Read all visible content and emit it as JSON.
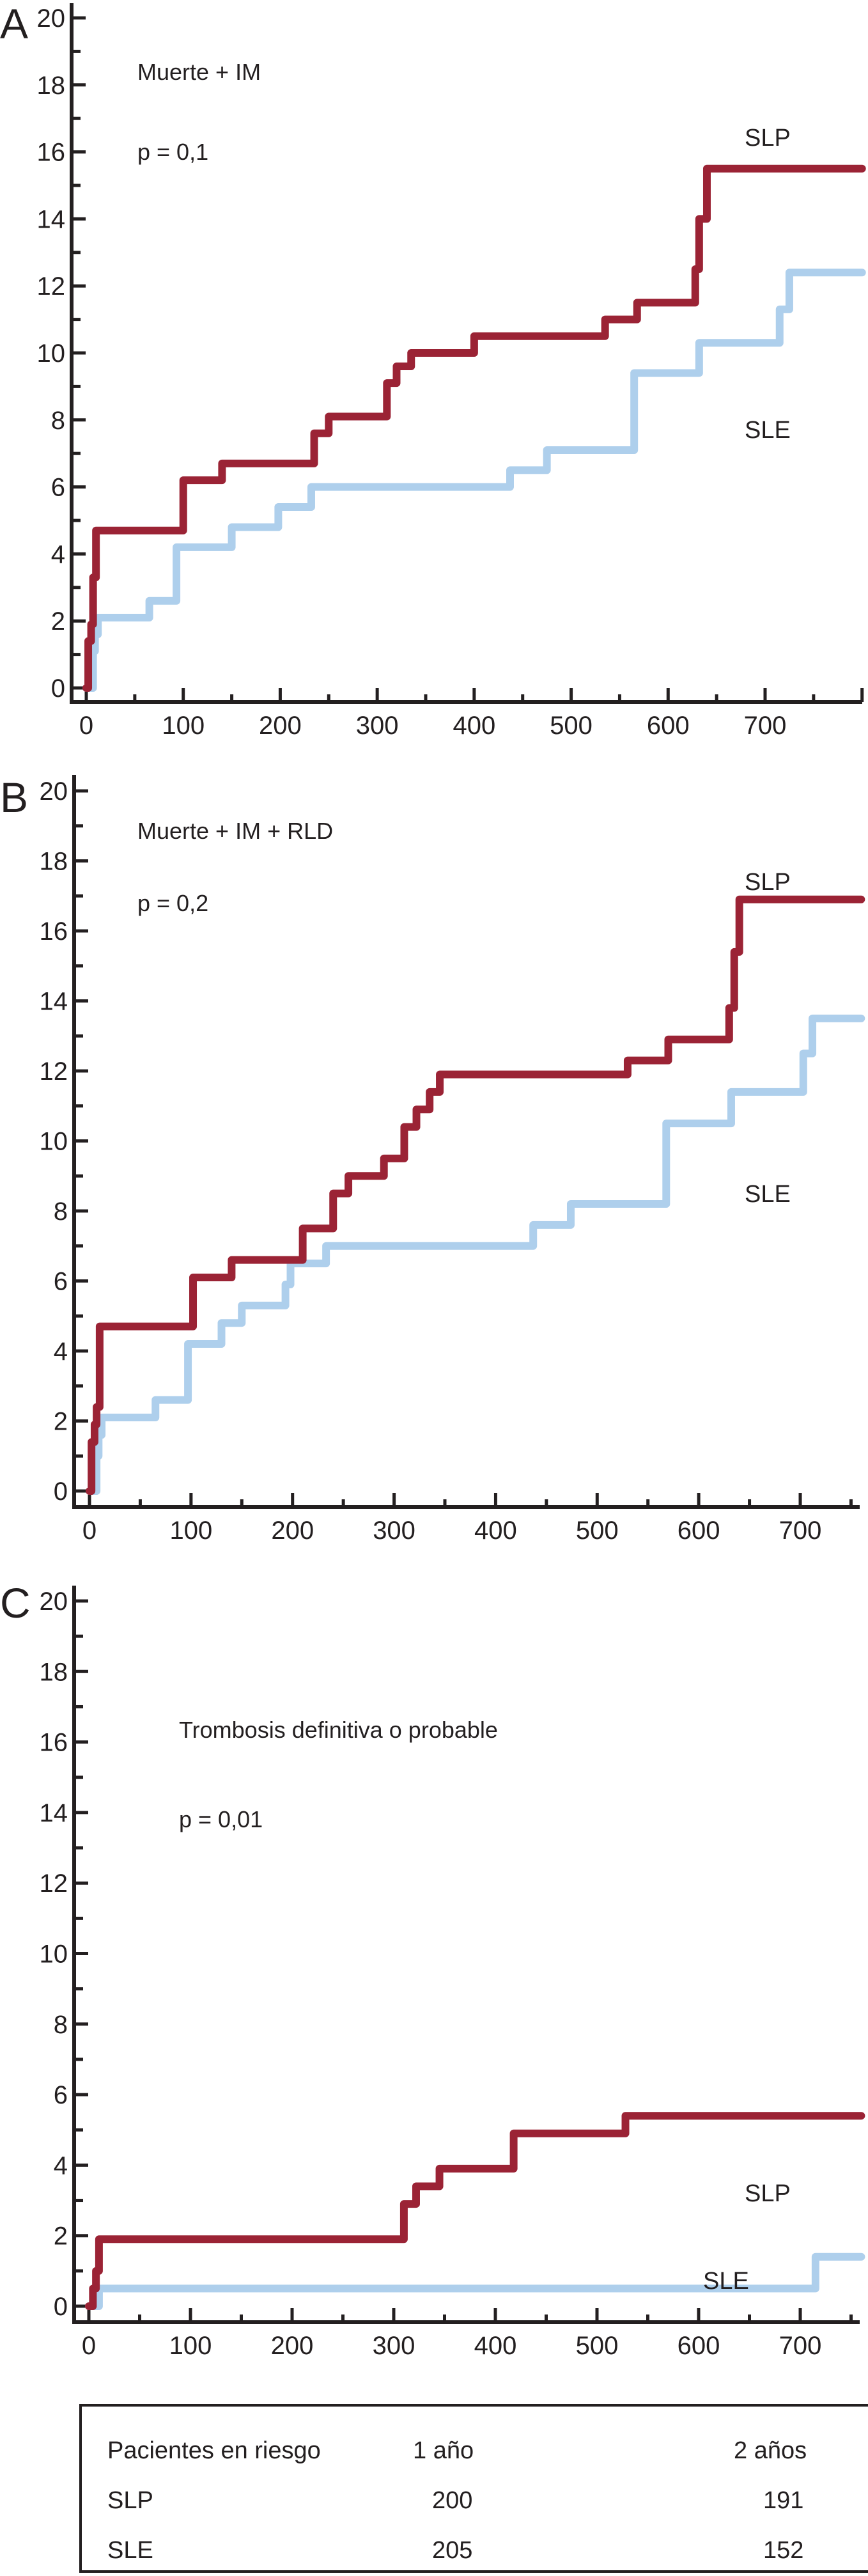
{
  "chart_data": [
    {
      "type": "line",
      "step": true,
      "panel": "A",
      "title": "Muerte + IM",
      "annotation": "p = 0,1",
      "xlabel": "",
      "ylabel": "",
      "xlim": [
        0,
        800
      ],
      "ylim": [
        0,
        20
      ],
      "xticks": [
        0,
        100,
        200,
        300,
        400,
        500,
        600,
        700
      ],
      "yticks": [
        0,
        2,
        4,
        6,
        8,
        10,
        12,
        14,
        16,
        18,
        20
      ],
      "grid": false,
      "series": [
        {
          "name": "SLP",
          "color": "#9b2335",
          "x": [
            0,
            2,
            5,
            7,
            10,
            100,
            140,
            235,
            250,
            310,
            320,
            335,
            400,
            535,
            568,
            628,
            632,
            640,
            800
          ],
          "y": [
            0,
            1.4,
            1.9,
            3.3,
            4.7,
            6.2,
            6.7,
            7.6,
            8.1,
            9.1,
            9.6,
            10.0,
            10.5,
            11.0,
            11.5,
            12.5,
            14.0,
            15.5,
            15.5
          ]
        },
        {
          "name": "SLE",
          "color": "#aecfec",
          "x": [
            0,
            7,
            9,
            12,
            65,
            93,
            150,
            198,
            232,
            437,
            475,
            565,
            632,
            715,
            725,
            800
          ],
          "y": [
            0,
            1.1,
            1.6,
            2.1,
            2.6,
            4.2,
            4.8,
            5.4,
            6.0,
            6.5,
            7.1,
            9.4,
            10.3,
            11.3,
            12.4,
            12.4
          ]
        }
      ],
      "series_labels": [
        "SLP",
        "SLE"
      ]
    },
    {
      "type": "line",
      "step": true,
      "panel": "B",
      "title": "Muerte + IM + RLD",
      "annotation": "p = 0,2",
      "xlabel": "",
      "ylabel": "",
      "xlim": [
        0,
        760
      ],
      "ylim": [
        0,
        20
      ],
      "xticks": [
        0,
        100,
        200,
        300,
        400,
        500,
        600,
        700
      ],
      "yticks": [
        0,
        2,
        4,
        6,
        8,
        10,
        12,
        14,
        16,
        18,
        20
      ],
      "grid": false,
      "series": [
        {
          "name": "SLP",
          "color": "#9b2335",
          "x": [
            0,
            2,
            5,
            7,
            10,
            102,
            140,
            210,
            240,
            255,
            290,
            310,
            322,
            335,
            345,
            530,
            570,
            630,
            635,
            640,
            760
          ],
          "y": [
            0,
            1.4,
            1.9,
            2.4,
            4.7,
            6.1,
            6.6,
            7.5,
            8.5,
            9.0,
            9.5,
            10.4,
            10.9,
            11.4,
            11.9,
            12.3,
            12.9,
            13.8,
            15.4,
            16.9,
            16.9
          ]
        },
        {
          "name": "SLE",
          "color": "#aecfec",
          "x": [
            0,
            7,
            9,
            12,
            65,
            97,
            130,
            150,
            193,
            198,
            233,
            437,
            474,
            568,
            632,
            703,
            712,
            760
          ],
          "y": [
            0,
            1.0,
            1.6,
            2.1,
            2.6,
            4.2,
            4.8,
            5.3,
            5.9,
            6.5,
            7.0,
            7.6,
            8.2,
            10.5,
            11.4,
            12.5,
            13.5,
            13.5
          ]
        }
      ],
      "series_labels": [
        "SLP",
        "SLE"
      ]
    },
    {
      "type": "line",
      "step": true,
      "panel": "C",
      "title": "Trombosis definitiva o probable",
      "annotation": "p = 0,01",
      "xlabel": "",
      "ylabel": "",
      "xlim": [
        0,
        760
      ],
      "ylim": [
        0,
        20
      ],
      "xticks": [
        0,
        100,
        200,
        300,
        400,
        500,
        600,
        700
      ],
      "yticks": [
        0,
        2,
        4,
        6,
        8,
        10,
        12,
        14,
        16,
        18,
        20
      ],
      "grid": false,
      "series": [
        {
          "name": "SLP",
          "color": "#9b2335",
          "x": [
            0,
            4,
            7,
            10,
            310,
            322,
            345,
            418,
            528,
            760
          ],
          "y": [
            0,
            0.5,
            1.0,
            1.9,
            2.9,
            3.4,
            3.9,
            4.9,
            5.4,
            5.4
          ]
        },
        {
          "name": "SLE",
          "color": "#aecfec",
          "x": [
            0,
            10,
            715,
            760
          ],
          "y": [
            0,
            0.5,
            1.4,
            1.4
          ]
        }
      ],
      "series_labels": [
        "SLP",
        "SLE"
      ]
    }
  ],
  "risk_table": {
    "header": [
      "Pacientes en riesgo",
      "1 año",
      "2 años"
    ],
    "rows": [
      {
        "group": "SLP",
        "year1": "200",
        "year2": "191"
      },
      {
        "group": "SLE",
        "year1": "205",
        "year2": "152"
      }
    ]
  }
}
